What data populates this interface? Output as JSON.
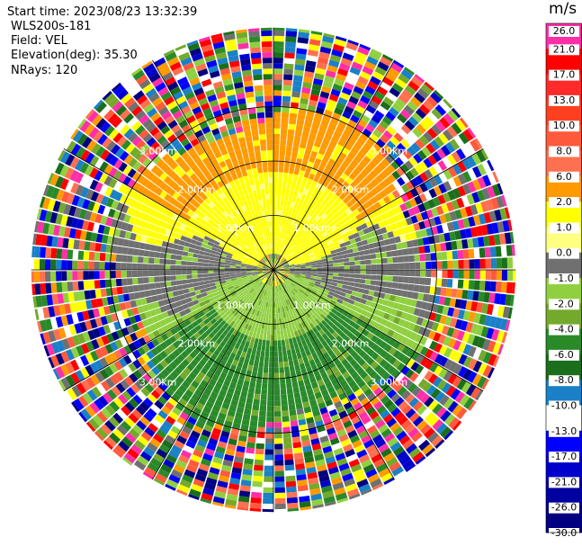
{
  "header": {
    "start_time": "Start time: 2023/08/23 13:32:39",
    "instrument": "WLS200s-181",
    "field": "Field: VEL",
    "elevation": "Elevation(deg): 35.30",
    "nrays": "NRays: 120"
  },
  "chart_data": {
    "type": "heatmap",
    "projection": "polar-ppi",
    "field": "VEL",
    "units": "m/s",
    "n_rays": 120,
    "range_rings_km": [
      1.0,
      2.0,
      3.0
    ],
    "range_ring_labels": [
      "1.00km",
      "2.00km",
      "3.00km"
    ],
    "spokes_deg": [
      0,
      30,
      60,
      90,
      120,
      150,
      180,
      210,
      240,
      270,
      300,
      330
    ],
    "max_range_km": 4.45,
    "colorbar": {
      "ticks": [
        "26.0",
        "21.0",
        "17.0",
        "13.0",
        "10.0",
        "8.0",
        "6.0",
        "2.0",
        "1.0",
        "0.0",
        "-1.0",
        "-2.0",
        "-4.0",
        "-6.0",
        "-8.0",
        "-10.0",
        "-13.0",
        "-17.0",
        "-21.0",
        "-26.0",
        "-30.0"
      ],
      "colors": [
        "#ff2fa8",
        "#ff0000",
        "#ff2a2a",
        "#ff4020",
        "#ff5a3c",
        "#ff7050",
        "#ff9a00",
        "#ffff00",
        "#ffff80",
        "#707070",
        "#90d040",
        "#74aa2c",
        "#2a8a2a",
        "#1b6e1b",
        "#1a80c8",
        "#ffffff",
        "#0000ff",
        "#0000cc",
        "#0000a0",
        "#000080"
      ]
    },
    "regions": [
      {
        "from_km": 0.0,
        "to_km": 0.25,
        "pattern": "mixed grey-green-orange"
      },
      {
        "from_km": 0.25,
        "to_km": 2.9,
        "north": "yellow / orange (+2 to +6 m/s)",
        "south": "green (-2 to -6 m/s)",
        "east_west": "grey (~0 m/s)"
      },
      {
        "from_km": 2.9,
        "to_km": 4.45,
        "pattern": "noise, all colors"
      }
    ]
  },
  "colorbar_unit": "m/s"
}
